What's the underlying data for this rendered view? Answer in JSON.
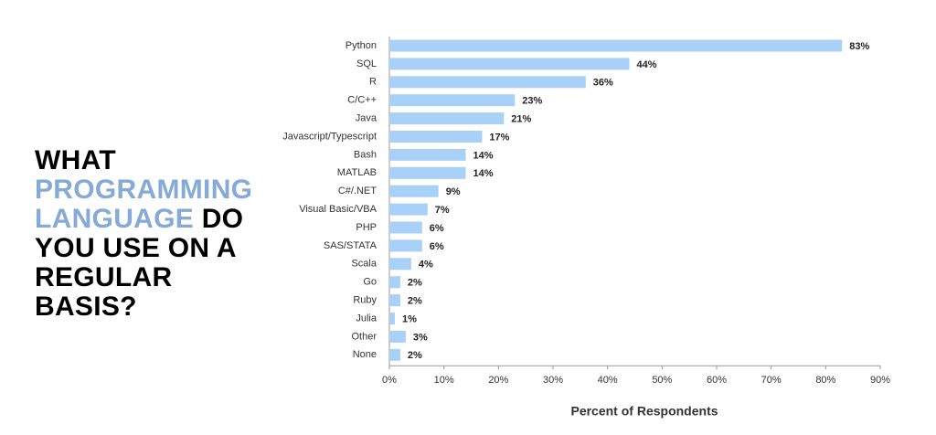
{
  "chart_data": {
    "type": "bar",
    "orientation": "horizontal",
    "title_segments": [
      "WHAT",
      "PROGRAMMING LANGUAGE",
      "DO YOU USE ON A REGULAR BASIS?"
    ],
    "title_highlight_color": "#86aad6",
    "categories": [
      "Python",
      "SQL",
      "R",
      "C/C++",
      "Java",
      "Javascript/Typescript",
      "Bash",
      "MATLAB",
      "C#/.NET",
      "Visual Basic/VBA",
      "PHP",
      "SAS/STATA",
      "Scala",
      "Go",
      "Ruby",
      "Julia",
      "Other",
      "None"
    ],
    "values": [
      83,
      44,
      36,
      23,
      21,
      17,
      14,
      14,
      9,
      7,
      6,
      6,
      4,
      2,
      2,
      1,
      3,
      2
    ],
    "value_labels": [
      "83%",
      "44%",
      "36%",
      "23%",
      "21%",
      "17%",
      "14%",
      "14%",
      "9%",
      "7%",
      "6%",
      "6%",
      "4%",
      "2%",
      "2%",
      "1%",
      "3%",
      "2%"
    ],
    "color": "#a9d0f7",
    "xlabel": "Percent of Respondents",
    "xlim": [
      0,
      90
    ],
    "xticks": [
      {
        "value": 0,
        "label": "0%"
      },
      {
        "value": 10,
        "label": "10%"
      },
      {
        "value": 20,
        "label": "20%"
      },
      {
        "value": 30,
        "label": "30%"
      },
      {
        "value": 40,
        "label": "40%"
      },
      {
        "value": 50,
        "label": "50%"
      },
      {
        "value": 60,
        "label": "60%"
      },
      {
        "value": 70,
        "label": "70%"
      },
      {
        "value": 80,
        "label": "80%"
      },
      {
        "value": 90,
        "label": "90%"
      }
    ]
  }
}
